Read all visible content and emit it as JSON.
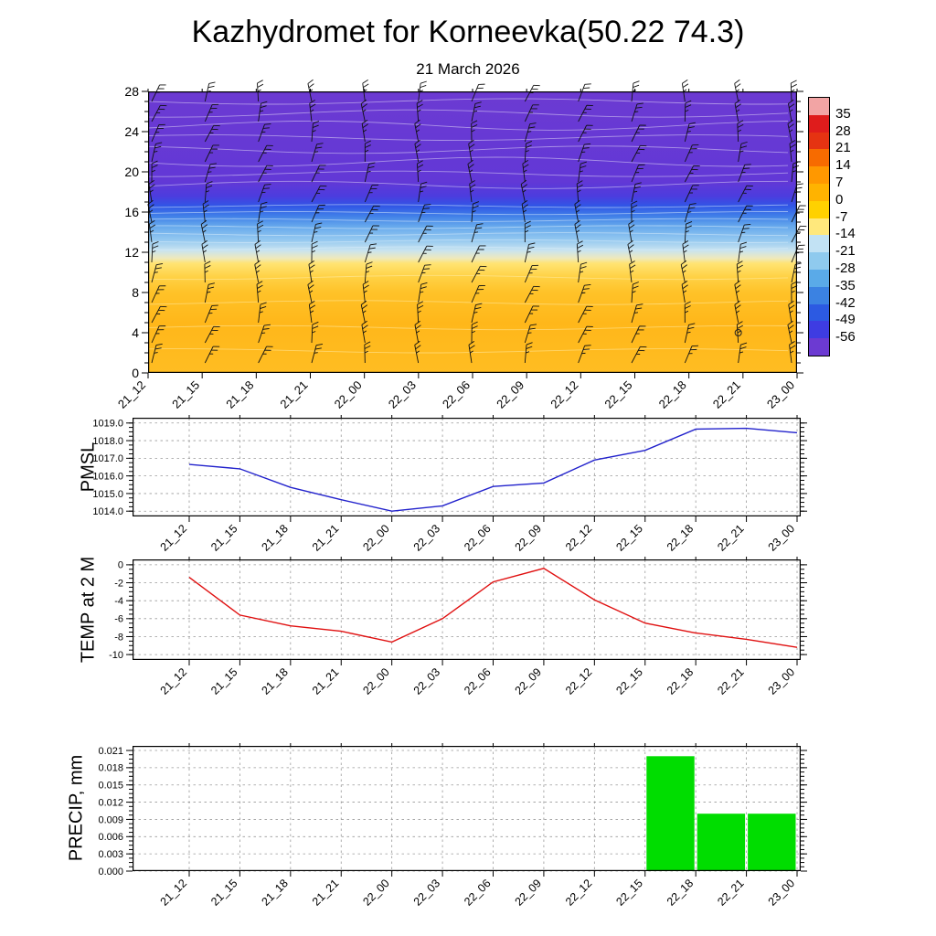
{
  "title": "Kazhydromet for Korneevka(50.22 74.3)",
  "subtitle": "21 March 2026",
  "chart_data": {
    "categories": [
      "21_12",
      "21_15",
      "21_18",
      "21_21",
      "22_00",
      "22_03",
      "22_06",
      "22_09",
      "22_12",
      "22_15",
      "22_18",
      "22_21",
      "23_00"
    ],
    "panels": [
      {
        "type": "heatmap",
        "name": "temperature-height-cross-section",
        "description": "Filled temperature (C) height-time cross-section with wind barbs and faint contour lines",
        "ylim": [
          0,
          28
        ],
        "y_ticks": [
          "28",
          "24",
          "20",
          "16",
          "12",
          "8",
          "4",
          "0"
        ],
        "wind_barbs": true,
        "calm_marker": {
          "time": "22_21",
          "alt": 4
        },
        "fill_profile": [
          {
            "alt": 28,
            "color": "#6c3ad2"
          },
          {
            "alt": 19,
            "color": "#6238d6"
          },
          {
            "alt": 17.6,
            "color": "#4c3cde"
          },
          {
            "alt": 16.6,
            "color": "#3056e6"
          },
          {
            "alt": 15.6,
            "color": "#4180e8"
          },
          {
            "alt": 14.6,
            "color": "#66a8ec"
          },
          {
            "alt": 13.2,
            "color": "#95c9f0"
          },
          {
            "alt": 12.2,
            "color": "#c8e3f0"
          },
          {
            "alt": 11.4,
            "color": "#efe9bc"
          },
          {
            "alt": 10.9,
            "color": "#ffe473"
          },
          {
            "alt": 9.6,
            "color": "#ffd246"
          },
          {
            "alt": 8,
            "color": "#ffc228"
          },
          {
            "alt": 5,
            "color": "#ffb71a"
          },
          {
            "alt": 0,
            "color": "#ffbd22"
          }
        ],
        "colorbar": {
          "labels": [
            "35",
            "28",
            "21",
            "14",
            "7",
            "0",
            "-7",
            "-14",
            "-21",
            "-28",
            "-35",
            "-42",
            "-49",
            "-56"
          ],
          "colors": [
            "#f2a4a4",
            "#df1c1c",
            "#e53312",
            "#f76b00",
            "#ff9800",
            "#ffb300",
            "#ffd100",
            "#ffe87c",
            "#c2e2f4",
            "#8fcaee",
            "#5aaae8",
            "#3b82e2",
            "#2c5ae2",
            "#3e3ce2",
            "#6c3ad2"
          ]
        }
      },
      {
        "type": "line",
        "name": "PMSL",
        "ylabel": "PMSL",
        "color": "#2222cc",
        "y_ticks": [
          "1019.0",
          "1018.0",
          "1017.0",
          "1016.0",
          "1015.0",
          "1014.0"
        ],
        "ylim": [
          1013.7,
          1019.3
        ],
        "values": [
          1016.65,
          1016.4,
          1015.35,
          1014.65,
          1014.0,
          1014.3,
          1015.4,
          1015.6,
          1016.9,
          1017.45,
          1018.65,
          1018.7,
          1018.45
        ]
      },
      {
        "type": "line",
        "name": "TEMP at 2 M",
        "ylabel": "TEMP at 2 M",
        "color": "#e01010",
        "y_ticks": [
          "0",
          "-2",
          "-4",
          "-6",
          "-8",
          "-10"
        ],
        "ylim": [
          -10.6,
          0.6
        ],
        "values": [
          -1.4,
          -5.6,
          -6.8,
          -7.4,
          -8.6,
          -6.0,
          -1.9,
          -0.4,
          -3.9,
          -6.5,
          -7.6,
          -8.3,
          -9.2
        ]
      },
      {
        "type": "bar",
        "name": "PRECIP, mm",
        "ylabel": "PRECIP, mm",
        "color": "#00dd00",
        "y_ticks": [
          "0.021",
          "0.018",
          "0.015",
          "0.012",
          "0.009",
          "0.006",
          "0.003",
          "0.000"
        ],
        "ylim": [
          0,
          0.0218
        ],
        "values": [
          0,
          0,
          0,
          0,
          0,
          0,
          0,
          0,
          0,
          0,
          0.02,
          0.01,
          0.01
        ]
      }
    ]
  }
}
